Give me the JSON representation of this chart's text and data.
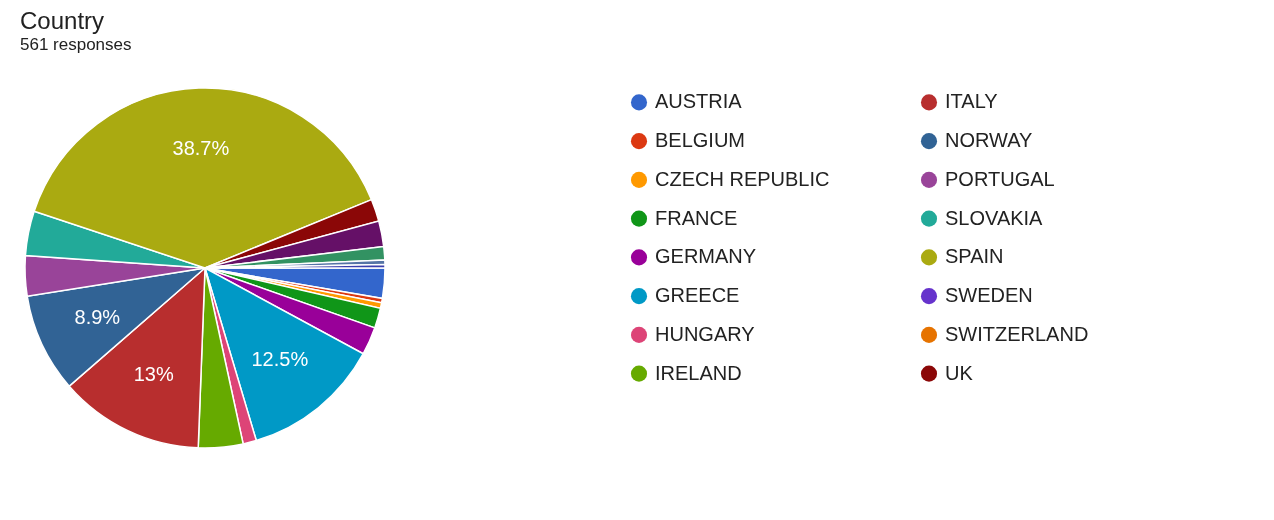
{
  "chart_data": {
    "type": "pie",
    "title": "Country",
    "subtitle": "561 responses",
    "categories": [
      "AUSTRIA",
      "BELGIUM",
      "CZECH REPUBLIC",
      "FRANCE",
      "GERMANY",
      "GREECE",
      "HUNGARY",
      "IRELAND",
      "ITALY",
      "NORWAY",
      "PORTUGAL",
      "SLOVAKIA",
      "SPAIN",
      "SWEDEN",
      "SWITZERLAND",
      "UK",
      null,
      null,
      null,
      null
    ],
    "values": [
      2.7,
      0.4,
      0.5,
      1.8,
      2.5,
      12.5,
      1.2,
      4,
      13,
      8.9,
      3.6,
      4,
      38.7,
      null,
      null,
      2.0,
      2.3,
      1.2,
      0.4,
      0.3
    ],
    "colors": [
      "#3366cc",
      "#dc3912",
      "#ff9900",
      "#109618",
      "#990099",
      "#0099c6",
      "#dd4477",
      "#66aa00",
      "#b82e2e",
      "#316395",
      "#994499",
      "#22aa99",
      "#aaaa11",
      "#6633cc",
      "#e67300",
      "#8b0707",
      "#651067",
      "#329262",
      "#5574a6",
      "#3b3eac"
    ],
    "value_labels": [
      null,
      null,
      null,
      null,
      null,
      "12.5%",
      null,
      null,
      "13%",
      "8.9%",
      null,
      null,
      "38.7%",
      null,
      null,
      null,
      null,
      null,
      null,
      null
    ],
    "legend": "right"
  }
}
